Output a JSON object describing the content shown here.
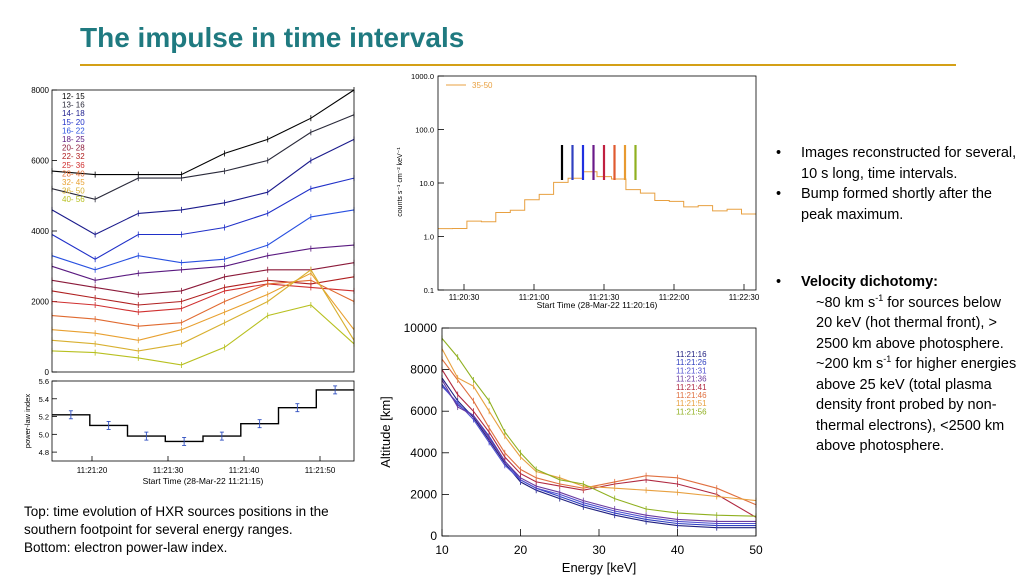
{
  "slide": {
    "title": "The impulse in time intervals",
    "caption": [
      "Top: time evolution of HXR sources positions in the",
      "southern footpoint for several energy ranges.",
      "Bottom: electron power-law index."
    ],
    "bullets": {
      "b1": "Images reconstructed for several, 10 s long, time intervals.",
      "b2": "Bump formed shortly after the peak maximum.",
      "b3_title": "Velocity dichotomy:",
      "b3_l1_a": "~80 km s",
      "b3_l1_sup": "-1",
      "b3_l1_b": " for sources below 20 keV (hot thermal front), > 2500 km above photosphere.",
      "b3_l2_a": "~200 km s",
      "b3_l2_sup": "-1",
      "b3_l2_b": " for higher energies above 25 keV (total plasma density front probed by non-thermal electrons), <2500 km above photosphere."
    }
  },
  "chart_data": [
    {
      "type": "line",
      "title": "",
      "xlabel": "",
      "ylabel": "",
      "ylim": [
        0,
        8000
      ],
      "yticks": [
        "0",
        "2000",
        "4000",
        "6000",
        "8000"
      ],
      "x": [
        1,
        2,
        3,
        4,
        5,
        6,
        7,
        8
      ],
      "legend": [
        "12- 15",
        "13- 16",
        "14- 18",
        "15- 20",
        "16- 22",
        "18- 25",
        "20- 28",
        "22- 32",
        "25- 36",
        "28- 40",
        "32- 45",
        "36- 50",
        "40- 56"
      ],
      "colors": [
        "#000000",
        "#2a2a3a",
        "#1b1b8c",
        "#2030c8",
        "#2850e0",
        "#5a1a80",
        "#8b1a3a",
        "#b02020",
        "#d03030",
        "#e06a30",
        "#e8a030",
        "#d8b030",
        "#b8c020"
      ],
      "series": [
        {
          "name": "12- 15",
          "values": [
            5700,
            5600,
            5600,
            5600,
            6200,
            6600,
            7200,
            8000
          ]
        },
        {
          "name": "13- 16",
          "values": [
            5200,
            4900,
            5500,
            5500,
            5700,
            6000,
            6800,
            7300
          ]
        },
        {
          "name": "14- 18",
          "values": [
            4600,
            3900,
            4500,
            4600,
            4800,
            5100,
            6000,
            6600
          ]
        },
        {
          "name": "15- 20",
          "values": [
            3900,
            3200,
            3900,
            3900,
            4100,
            4500,
            5200,
            5500
          ]
        },
        {
          "name": "16- 22",
          "values": [
            3300,
            2900,
            3300,
            3100,
            3200,
            3600,
            4400,
            4600
          ]
        },
        {
          "name": "18- 25",
          "values": [
            3000,
            2600,
            2800,
            2900,
            3000,
            3300,
            3500,
            3600
          ]
        },
        {
          "name": "20- 28",
          "values": [
            2600,
            2400,
            2200,
            2300,
            2700,
            2900,
            2900,
            3100
          ]
        },
        {
          "name": "22- 32",
          "values": [
            2300,
            2100,
            1900,
            2000,
            2400,
            2600,
            2500,
            2700
          ]
        },
        {
          "name": "25- 36",
          "values": [
            2000,
            1900,
            1700,
            1800,
            2300,
            2500,
            2400,
            2300
          ]
        },
        {
          "name": "28- 40",
          "values": [
            1600,
            1500,
            1300,
            1400,
            2000,
            2500,
            2600,
            2000
          ]
        },
        {
          "name": "32- 45",
          "values": [
            1200,
            1100,
            900,
            1200,
            1700,
            2200,
            2800,
            1200
          ]
        },
        {
          "name": "36- 50",
          "values": [
            900,
            800,
            600,
            800,
            1400,
            2000,
            2900,
            900
          ]
        },
        {
          "name": "40- 56",
          "values": [
            600,
            550,
            400,
            200,
            700,
            1600,
            1900,
            800
          ]
        }
      ]
    },
    {
      "type": "line",
      "title": "",
      "ylabel": "power-law index",
      "xlabel": "Start Time (28-Mar-22 11:21:15)",
      "ylim": [
        4.7,
        5.6
      ],
      "yticks": [
        "4.8",
        "5.0",
        "5.2",
        "5.4",
        "5.6"
      ],
      "xticks": [
        "11:21:20",
        "11:21:30",
        "11:21:40",
        "11:21:50"
      ],
      "values": [
        5.22,
        5.1,
        4.98,
        4.92,
        4.98,
        5.12,
        5.3,
        5.5
      ]
    },
    {
      "type": "line",
      "title": "",
      "xlabel": "Start Time (28-Mar-22 11:20:16)",
      "ylabel": "counts s⁻¹ cm⁻² keV⁻¹",
      "scale": "log",
      "ylim": [
        0.1,
        1000
      ],
      "yticks": [
        "0.1",
        "1.0",
        "10.0",
        "100.0",
        "1000.0"
      ],
      "xticks": [
        "11:20:30",
        "11:21:00",
        "11:21:30",
        "11:22:00",
        "11:22:30"
      ],
      "legend": [
        "35-50"
      ],
      "series": [
        {
          "name": "35-50",
          "values": [
            1.3,
            1.5,
            1.8,
            2.0,
            2.6,
            3.3,
            4.5,
            6.5,
            9.5,
            13,
            15,
            14,
            11,
            8,
            6,
            5,
            4.2,
            3.8,
            3.5,
            3.2,
            3.0,
            2.8
          ]
        }
      ],
      "markers": [
        "#000000",
        "#3040c0",
        "#2030e0",
        "#6a1a8a",
        "#c02040",
        "#e05a30",
        "#e89a30",
        "#90b020"
      ]
    },
    {
      "type": "line",
      "title": "",
      "xlabel": "Energy [keV]",
      "ylabel": "Altitude [km]",
      "xlim": [
        10,
        50
      ],
      "ylim": [
        0,
        10000
      ],
      "xticks": [
        "10",
        "20",
        "30",
        "40",
        "50"
      ],
      "yticks": [
        "0",
        "2000",
        "4000",
        "6000",
        "8000",
        "10000"
      ],
      "x": [
        10,
        12,
        14,
        16,
        18,
        20,
        22,
        25,
        28,
        32,
        36,
        40,
        45,
        50
      ],
      "legend": [
        "11:21:16",
        "11:21:26",
        "11:21:31",
        "11:21:36",
        "11:21:41",
        "11:21:46",
        "11:21:51",
        "11:21:56"
      ],
      "colors": [
        "#202080",
        "#3040c0",
        "#5050d0",
        "#6a3aa0",
        "#b02840",
        "#e07040",
        "#e8a040",
        "#90b020"
      ],
      "series": [
        {
          "name": "11:21:16",
          "values": [
            7600,
            6500,
            5700,
            4600,
            3500,
            2600,
            2200,
            1800,
            1400,
            1000,
            700,
            500,
            400,
            400
          ]
        },
        {
          "name": "11:21:26",
          "values": [
            7300,
            6300,
            5800,
            4800,
            3600,
            2700,
            2300,
            1900,
            1500,
            1100,
            800,
            600,
            500,
            500
          ]
        },
        {
          "name": "11:21:31",
          "values": [
            7200,
            6400,
            5600,
            4500,
            3400,
            2700,
            2300,
            2000,
            1600,
            1200,
            900,
            700,
            600,
            600
          ]
        },
        {
          "name": "11:21:36",
          "values": [
            7500,
            6200,
            5800,
            4700,
            3600,
            2800,
            2400,
            2100,
            1700,
            1300,
            1000,
            800,
            700,
            700
          ]
        },
        {
          "name": "11:21:41",
          "values": [
            8000,
            6800,
            6000,
            5000,
            3800,
            3000,
            2600,
            2400,
            2200,
            2500,
            2700,
            2500,
            2000,
            900
          ]
        },
        {
          "name": "11:21:46",
          "values": [
            8500,
            7500,
            6500,
            5200,
            4000,
            3200,
            2800,
            2500,
            2300,
            2600,
            2900,
            2800,
            2300,
            1500
          ]
        },
        {
          "name": "11:21:51",
          "values": [
            9000,
            7600,
            7200,
            6000,
            4800,
            3800,
            3100,
            2800,
            2400,
            2300,
            2200,
            2100,
            1900,
            1700
          ]
        },
        {
          "name": "11:21:56",
          "values": [
            9500,
            8600,
            7500,
            6500,
            5000,
            4000,
            3200,
            2700,
            2500,
            1800,
            1300,
            1100,
            1000,
            950
          ]
        }
      ]
    }
  ]
}
